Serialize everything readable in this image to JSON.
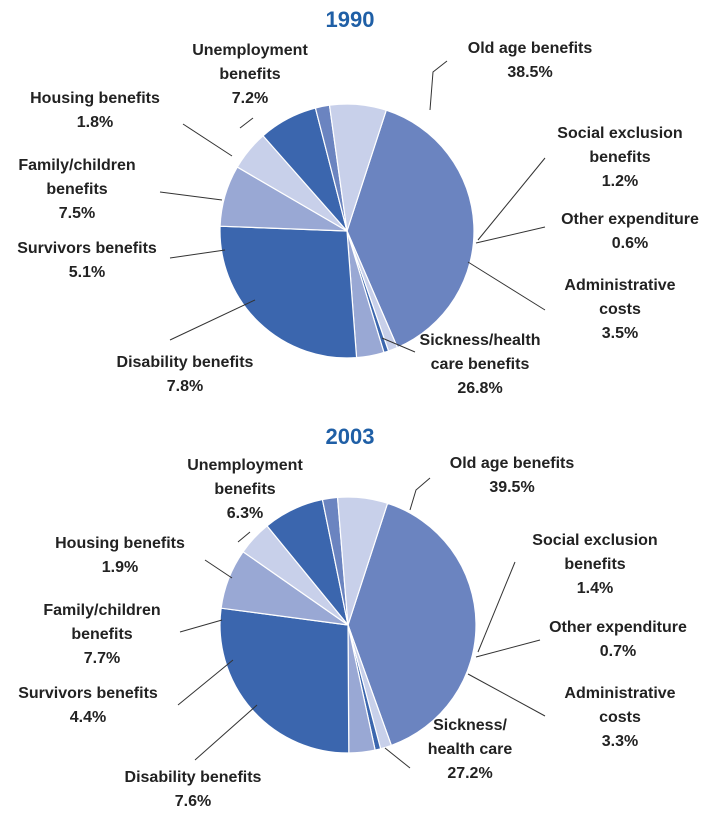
{
  "chart_data": [
    {
      "type": "pie",
      "title": "1990",
      "start_angle_deg": -72,
      "slices": [
        {
          "label": [
            "Old age benefits",
            "38.5%"
          ],
          "value": 38.5,
          "color": "#6b84c0"
        },
        {
          "label": [
            "Social exclusion",
            "benefits",
            "1.2%"
          ],
          "value": 1.2,
          "color": "#c8d0ea"
        },
        {
          "label": [
            "Other expenditure",
            "0.6%"
          ],
          "value": 0.6,
          "color": "#3b66ae"
        },
        {
          "label": [
            "Administrative",
            "costs",
            "3.5%"
          ],
          "value": 3.5,
          "color": "#99a8d4"
        },
        {
          "label": [
            "Sickness/health",
            "care benefits",
            "26.8%"
          ],
          "value": 26.8,
          "color": "#3b66ae"
        },
        {
          "label": [
            "Disability benefits",
            "7.8%"
          ],
          "value": 7.8,
          "color": "#99a8d4"
        },
        {
          "label": [
            "Survivors benefits",
            "5.1%"
          ],
          "value": 5.1,
          "color": "#c8d0ea"
        },
        {
          "label": [
            "Family/children",
            "benefits",
            "7.5%"
          ],
          "value": 7.5,
          "color": "#3b66ae"
        },
        {
          "label": [
            "Housing benefits",
            "1.8%"
          ],
          "value": 1.8,
          "color": "#6b84c0"
        },
        {
          "label": [
            "Unemployment",
            "benefits",
            "7.2%"
          ],
          "value": 7.2,
          "color": "#c8d0ea"
        }
      ]
    },
    {
      "type": "pie",
      "title": "2003",
      "start_angle_deg": -72,
      "slices": [
        {
          "label": [
            "Old age benefits",
            "39.5%"
          ],
          "value": 39.5,
          "color": "#6b84c0"
        },
        {
          "label": [
            "Social exclusion",
            "benefits",
            "1.4%"
          ],
          "value": 1.4,
          "color": "#c8d0ea"
        },
        {
          "label": [
            "Other expenditure",
            "0.7%"
          ],
          "value": 0.7,
          "color": "#3b66ae"
        },
        {
          "label": [
            "Administrative",
            "costs",
            "3.3%"
          ],
          "value": 3.3,
          "color": "#99a8d4"
        },
        {
          "label": [
            "Sickness/",
            "health care",
            "27.2%"
          ],
          "value": 27.2,
          "color": "#3b66ae"
        },
        {
          "label": [
            "Disability benefits",
            "7.6%"
          ],
          "value": 7.6,
          "color": "#99a8d4"
        },
        {
          "label": [
            "Survivors benefits",
            "4.4%"
          ],
          "value": 4.4,
          "color": "#c8d0ea"
        },
        {
          "label": [
            "Family/children",
            "benefits",
            "7.7%"
          ],
          "value": 7.7,
          "color": "#3b66ae"
        },
        {
          "label": [
            "Housing benefits",
            "1.9%"
          ],
          "value": 1.9,
          "color": "#6b84c0"
        },
        {
          "label": [
            "Unemployment",
            "benefits",
            "6.3%"
          ],
          "value": 6.3,
          "color": "#c8d0ea"
        }
      ]
    }
  ]
}
